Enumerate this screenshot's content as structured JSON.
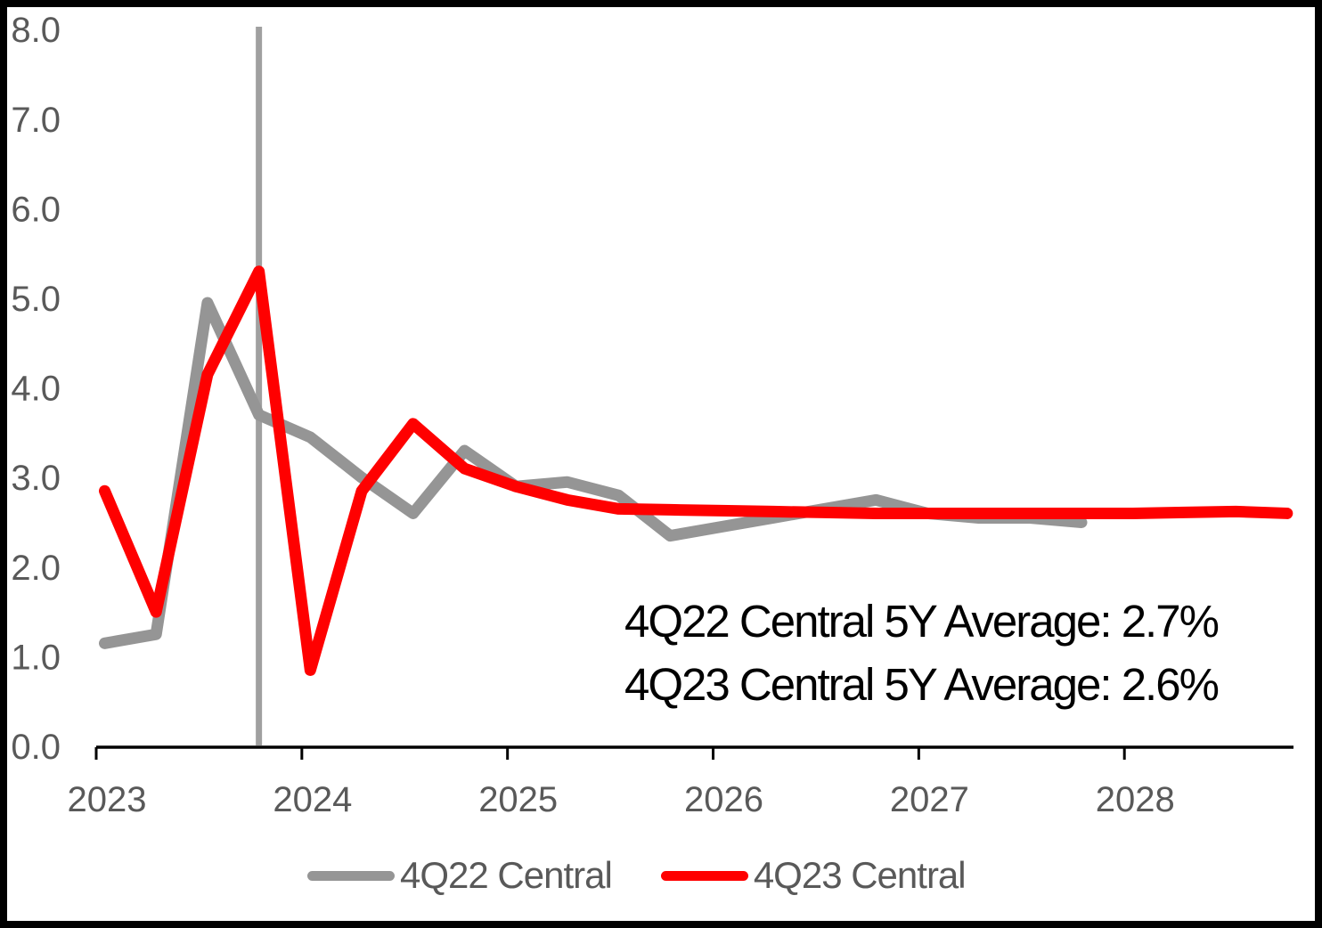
{
  "chart_data": {
    "type": "line",
    "title": "",
    "xlabel": "",
    "ylabel": "",
    "ylim": [
      0.0,
      8.0
    ],
    "ytick_step": 1.0,
    "y_tick_labels": [
      "0.0",
      "1.0",
      "2.0",
      "3.0",
      "4.0",
      "5.0",
      "6.0",
      "7.0",
      "8.0"
    ],
    "x_tick_labels": [
      "2023",
      "2024",
      "2025",
      "2026",
      "2027",
      "2028"
    ],
    "grid": "off",
    "legend_position": "bottom",
    "categories": [
      "2023Q1",
      "2023Q2",
      "2023Q3",
      "2023Q4",
      "2024Q1",
      "2024Q2",
      "2024Q3",
      "2024Q4",
      "2025Q1",
      "2025Q2",
      "2025Q3",
      "2025Q4",
      "2026Q1",
      "2026Q2",
      "2026Q3",
      "2026Q4",
      "2027Q1",
      "2027Q2",
      "2027Q3",
      "2027Q4",
      "2028Q1",
      "2028Q2",
      "2028Q3",
      "2028Q4"
    ],
    "series": [
      {
        "name": "4Q22 Central",
        "color": "#959595",
        "start_category": "2023Q1",
        "values": [
          1.15,
          1.25,
          4.95,
          3.7,
          3.45,
          3.0,
          2.6,
          3.3,
          2.9,
          2.95,
          2.8,
          2.35,
          2.45,
          2.55,
          2.65,
          2.75,
          2.6,
          2.55,
          2.55,
          2.5
        ]
      },
      {
        "name": "4Q23 Central",
        "color": "#FF0000",
        "start_category": "2023Q1",
        "values": [
          2.85,
          1.5,
          4.15,
          5.3,
          0.85,
          2.85,
          3.6,
          3.1,
          2.9,
          2.75,
          2.65,
          2.64,
          2.63,
          2.62,
          2.61,
          2.6,
          2.6,
          2.6,
          2.6,
          2.6,
          2.6,
          2.61,
          2.62,
          2.6
        ]
      }
    ],
    "vertical_marker": {
      "at_category": "2023Q4",
      "color": "#A0A0A0"
    },
    "annotations": [
      "4Q22 Central 5Y Average: 2.7%",
      "4Q23 Central 5Y Average: 2.6%"
    ],
    "colors": {
      "axis_line": "#000000",
      "axis_labels": "#595959",
      "annotation_text": "#000000",
      "legend_text": "#595959",
      "background": "#FFFFFF",
      "frame": "#000000"
    }
  }
}
